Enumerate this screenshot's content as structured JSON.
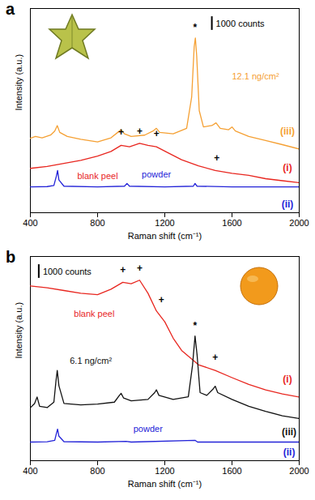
{
  "chart_data": [
    {
      "type": "line",
      "panel": "a",
      "x_label": "Raman shift (cm⁻¹)",
      "y_label": "Intensity (a.u.)",
      "xlim": [
        400,
        2000
      ],
      "xticks": [
        400,
        800,
        1200,
        1600,
        2000
      ],
      "ylim": [
        -1000,
        14000
      ],
      "tick_labels": "x",
      "scale_bar": {
        "value": 1000,
        "label": "1000 counts",
        "x": 1480
      },
      "series": [
        {
          "name": "blank peel",
          "color": "#e8261f",
          "label_at": [
            800,
            1700
          ],
          "x": [
            400,
            500,
            600,
            700,
            800,
            880,
            940,
            990,
            1050,
            1100,
            1150,
            1220,
            1300,
            1400,
            1500,
            1600,
            1700,
            1800,
            1900,
            2000
          ],
          "values": [
            2260,
            2400,
            2630,
            2850,
            3160,
            3500,
            3950,
            3850,
            4100,
            3950,
            3840,
            3400,
            2890,
            2450,
            2100,
            1900,
            1740,
            1500,
            1350,
            1210
          ]
        },
        {
          "name": "powder",
          "color": "#2323d8",
          "label_at": [
            1150,
            1800
          ],
          "x": [
            400,
            500,
            540,
            555,
            562,
            570,
            600,
            800,
            960,
            975,
            990,
            1200,
            1370,
            1380,
            1392,
            1600,
            1800,
            2000
          ],
          "values": [
            900,
            920,
            1000,
            1700,
            2100,
            1400,
            950,
            900,
            950,
            1150,
            950,
            900,
            950,
            1150,
            950,
            900,
            900,
            900
          ]
        },
        {
          "name": "12.1 ng/cm²",
          "color": "#f5a033",
          "label_at": [
            1740,
            9000
          ],
          "x": [
            400,
            430,
            470,
            520,
            545,
            560,
            575,
            620,
            700,
            800,
            880,
            920,
            940,
            960,
            1000,
            1080,
            1130,
            1150,
            1170,
            1250,
            1330,
            1360,
            1375,
            1382,
            1390,
            1405,
            1430,
            1480,
            1505,
            1530,
            1580,
            1600,
            1620,
            1700,
            1800,
            1900,
            2000
          ],
          "values": [
            4470,
            4600,
            4500,
            4700,
            5000,
            5400,
            4900,
            4600,
            4400,
            4200,
            4500,
            4900,
            5100,
            4800,
            4600,
            4700,
            5000,
            5200,
            4900,
            4800,
            5200,
            7500,
            11200,
            11840,
            10500,
            6500,
            5300,
            5400,
            5600,
            5200,
            5100,
            5300,
            5000,
            4600,
            4300,
            4000,
            3680
          ]
        }
      ],
      "annotations": [
        {
          "text": "(i)",
          "x": 1930,
          "y": 2300,
          "color": "#e8261f"
        },
        {
          "text": "(ii)",
          "x": 1930,
          "y": -400,
          "color": "#2323d8"
        },
        {
          "text": "(iii)",
          "x": 1930,
          "y": 5000,
          "color": "#f5a033"
        },
        {
          "text": "*",
          "x": 1380,
          "y": 12600,
          "color": "#000000"
        },
        {
          "text": "+",
          "x": 940,
          "y": 4900,
          "color": "#000000"
        },
        {
          "text": "+",
          "x": 1050,
          "y": 5000,
          "color": "#000000"
        },
        {
          "text": "+",
          "x": 1150,
          "y": 4800,
          "color": "#000000"
        },
        {
          "text": "+",
          "x": 1510,
          "y": 3000,
          "color": "#000000"
        }
      ]
    },
    {
      "type": "line",
      "panel": "b",
      "x_label": "Raman shift (cm⁻¹)",
      "y_label": "Intensity (a.u.)",
      "xlim": [
        400,
        2000
      ],
      "xticks": [
        400,
        800,
        1200,
        1600,
        2000
      ],
      "ylim": [
        -1000,
        14000
      ],
      "tick_labels": "x",
      "scale_bar": {
        "value": 1000,
        "label": "1000 counts",
        "x": 450
      },
      "series": [
        {
          "name": "blank peel",
          "color": "#e8261f",
          "label_at": [
            780,
            9800
          ],
          "x": [
            400,
            500,
            600,
            700,
            800,
            880,
            950,
            1000,
            1050,
            1100,
            1150,
            1200,
            1250,
            1300,
            1400,
            1500,
            1600,
            1700,
            1800,
            1900,
            2000
          ],
          "values": [
            11840,
            11700,
            11500,
            11300,
            11200,
            11600,
            12100,
            12000,
            12260,
            11300,
            10000,
            9200,
            8000,
            7100,
            6050,
            5630,
            5100,
            4600,
            4200,
            3900,
            3680
          ]
        },
        {
          "name": "powder",
          "color": "#2323d8",
          "label_at": [
            1100,
            1300
          ],
          "x": [
            400,
            500,
            545,
            555,
            562,
            570,
            600,
            800,
            970,
            1000,
            1380,
            1395,
            1600,
            2000
          ],
          "values": [
            370,
            390,
            500,
            1000,
            1320,
            800,
            400,
            370,
            420,
            370,
            500,
            370,
            370,
            370
          ]
        },
        {
          "name": "6.1 ng/cm²",
          "color": "#111111",
          "label_at": [
            760,
            6300
          ],
          "x": [
            400,
            425,
            440,
            455,
            500,
            540,
            552,
            560,
            570,
            600,
            700,
            800,
            900,
            930,
            940,
            955,
            1000,
            1100,
            1140,
            1150,
            1165,
            1250,
            1340,
            1365,
            1380,
            1392,
            1410,
            1450,
            1490,
            1500,
            1515,
            1600,
            1700,
            1800,
            1900,
            2000
          ],
          "values": [
            2890,
            3200,
            3680,
            3000,
            2900,
            3300,
            4800,
            5630,
            4500,
            3200,
            3100,
            3160,
            3300,
            3800,
            3950,
            3600,
            3400,
            3500,
            4000,
            4210,
            3800,
            3500,
            3700,
            6000,
            8160,
            6800,
            4000,
            3800,
            4300,
            4470,
            4000,
            3500,
            3000,
            2630,
            2300,
            2100
          ]
        }
      ],
      "annotations": [
        {
          "text": "(i)",
          "x": 1930,
          "y": 5000,
          "color": "#e8261f"
        },
        {
          "text": "(ii)",
          "x": 1940,
          "y": -400,
          "color": "#2323d8"
        },
        {
          "text": "(iii)",
          "x": 1940,
          "y": 1100,
          "color": "#111111"
        },
        {
          "text": "*",
          "x": 1380,
          "y": 8900,
          "color": "#000000"
        },
        {
          "text": "+",
          "x": 950,
          "y": 13000,
          "color": "#000000"
        },
        {
          "text": "+",
          "x": 1050,
          "y": 13100,
          "color": "#000000"
        },
        {
          "text": "+",
          "x": 1180,
          "y": 10800,
          "color": "#000000"
        },
        {
          "text": "+",
          "x": 1500,
          "y": 6600,
          "color": "#000000"
        }
      ]
    }
  ]
}
